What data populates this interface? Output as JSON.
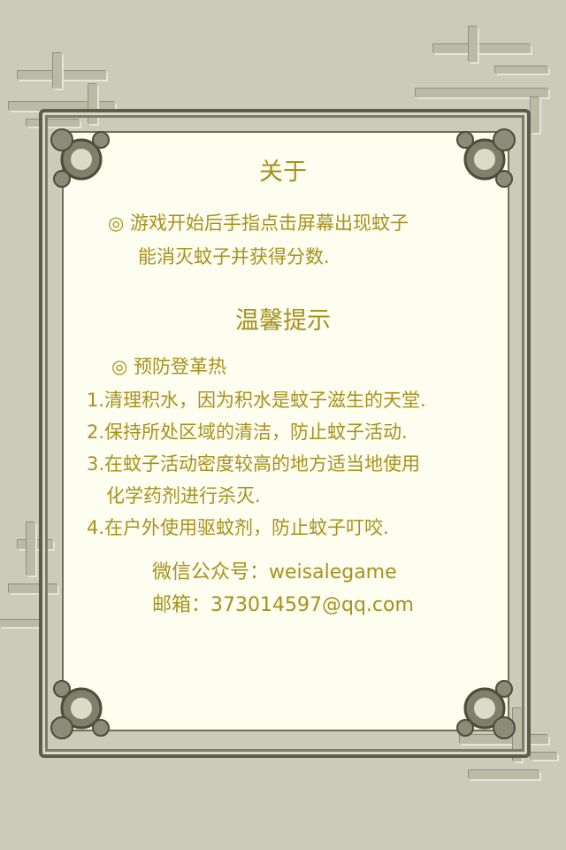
{
  "about": {
    "title": "关于",
    "line1": "◎ 游戏开始后手指点击屏幕出现蚊子",
    "line2": "能消灭蚊子并获得分数."
  },
  "tips": {
    "title": "温馨提示",
    "subtitle": "◎ 预防登革热",
    "items": [
      "1.清理积水，因为积水是蚊子滋生的天堂.",
      "2.保持所处区域的清洁，防止蚊子活动.",
      "3.在蚊子活动密度较高的地方适当地使用",
      "化学药剂进行杀灭.",
      "4.在户外使用驱蚊剂，防止蚊子叮咬."
    ]
  },
  "contact": {
    "wechat": "微信公众号：weisalegame",
    "email": "邮箱：373014597@qq.com"
  },
  "colors": {
    "background": "#cacbba",
    "panel": "#fdfdf0",
    "text": "#a8911c",
    "frame": "#5b5d4b"
  }
}
